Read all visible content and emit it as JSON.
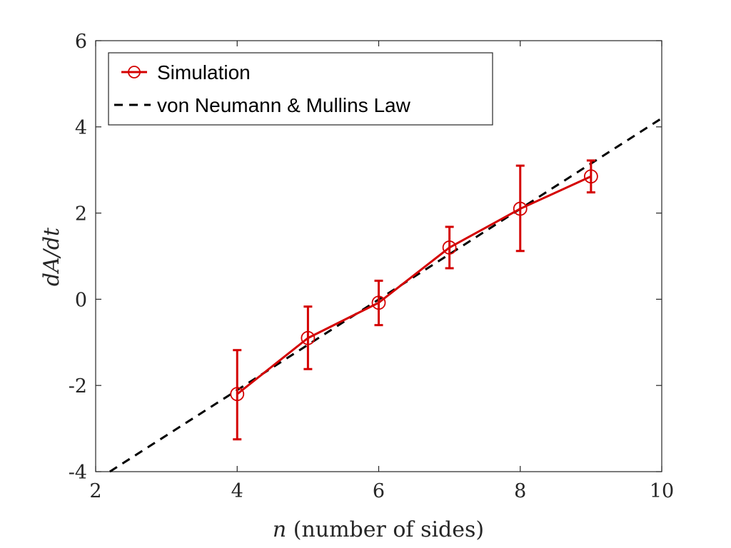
{
  "chart_data": {
    "type": "line",
    "xlabel_var": "n",
    "xlabel_rest": " (number of sides)",
    "ylabel": "dA/dt",
    "xlim": [
      2,
      10
    ],
    "ylim": [
      -4,
      6
    ],
    "xticks": [
      2,
      4,
      6,
      8,
      10
    ],
    "yticks": [
      -4,
      -2,
      0,
      2,
      4,
      6
    ],
    "xtick_labels": [
      "2",
      "4",
      "6",
      "8",
      "10"
    ],
    "ytick_labels": [
      "-4",
      "-2",
      "0",
      "2",
      "4",
      "6"
    ],
    "legend_position": "top-left",
    "series": [
      {
        "name": "Simulation",
        "style": "line-with-circle-markers-and-errorbars",
        "color": "#d40000",
        "x": [
          4,
          5,
          6,
          7,
          8,
          9
        ],
        "y": [
          -2.2,
          -0.9,
          -0.08,
          1.2,
          2.1,
          2.85
        ],
        "err_low": [
          -3.25,
          -1.62,
          -0.6,
          0.72,
          1.12,
          2.48
        ],
        "err_high": [
          -1.18,
          -0.17,
          0.43,
          1.68,
          3.1,
          3.22
        ]
      },
      {
        "name": "von Neumann & Mullins Law",
        "style": "dashed-line",
        "color": "#000000",
        "x": [
          2.2,
          10
        ],
        "y": [
          -4,
          4.2
        ]
      }
    ]
  }
}
